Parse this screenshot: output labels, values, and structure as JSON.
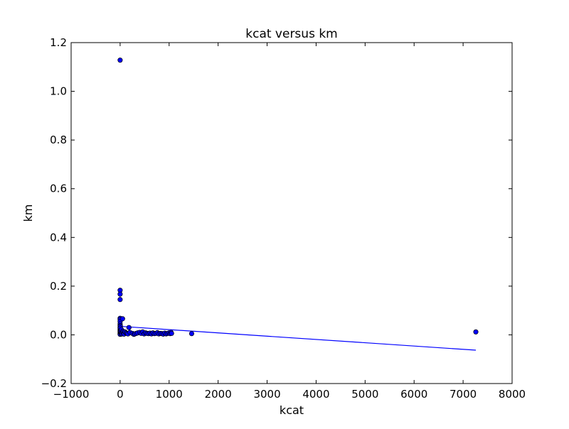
{
  "chart_data": {
    "type": "scatter",
    "title": "kcat versus km",
    "xlabel": "kcat",
    "ylabel": "km",
    "xlim": [
      -1000,
      8000
    ],
    "ylim": [
      -0.2,
      1.2
    ],
    "xticks": [
      -1000,
      0,
      1000,
      2000,
      3000,
      4000,
      5000,
      6000,
      7000,
      8000
    ],
    "yticks": [
      -0.2,
      0.0,
      0.2,
      0.4,
      0.6,
      0.8,
      1.0,
      1.2
    ],
    "xtick_labels": [
      "−1000",
      "0",
      "1000",
      "2000",
      "3000",
      "4000",
      "5000",
      "6000",
      "7000",
      "8000"
    ],
    "ytick_labels": [
      "−0.2",
      "0.0",
      "0.2",
      "0.4",
      "0.6",
      "0.8",
      "1.0",
      "1.2"
    ],
    "grid": false,
    "colors": {
      "points": "#0000ff",
      "fit_line": "#0000ff",
      "point_edge": "#000000"
    },
    "series": [
      {
        "type": "scatter",
        "points": [
          [
            0,
            1.128
          ],
          [
            0,
            0.183
          ],
          [
            0,
            0.167
          ],
          [
            0,
            0.145
          ],
          [
            0,
            0.068
          ],
          [
            0,
            0.063
          ],
          [
            0,
            0.055
          ],
          [
            0,
            0.045
          ],
          [
            0,
            0.038
          ],
          [
            0,
            0.03
          ],
          [
            0,
            0.025
          ],
          [
            0,
            0.02
          ],
          [
            0,
            0.015
          ],
          [
            0,
            0.01
          ],
          [
            0,
            0.005
          ],
          [
            0,
            0.002
          ],
          [
            5,
            0.035
          ],
          [
            5,
            0.028
          ],
          [
            8,
            0.018
          ],
          [
            10,
            0.012
          ],
          [
            15,
            0.006
          ],
          [
            20,
            0.003
          ],
          [
            25,
            0.022
          ],
          [
            30,
            0.008
          ],
          [
            40,
            0.004
          ],
          [
            50,
            0.066
          ],
          [
            55,
            0.015
          ],
          [
            60,
            0.01
          ],
          [
            70,
            0.005
          ],
          [
            80,
            0.003
          ],
          [
            100,
            0.012
          ],
          [
            120,
            0.008
          ],
          [
            140,
            0.006
          ],
          [
            160,
            0.004
          ],
          [
            180,
            0.03
          ],
          [
            200,
            0.01
          ],
          [
            250,
            0.006
          ],
          [
            280,
            0.002
          ],
          [
            300,
            0.004
          ],
          [
            330,
            0.006
          ],
          [
            360,
            0.008
          ],
          [
            400,
            0.01
          ],
          [
            430,
            0.006
          ],
          [
            460,
            0.012
          ],
          [
            490,
            0.004
          ],
          [
            520,
            0.008
          ],
          [
            550,
            0.006
          ],
          [
            580,
            0.005
          ],
          [
            610,
            0.007
          ],
          [
            640,
            0.004
          ],
          [
            670,
            0.008
          ],
          [
            700,
            0.005
          ],
          [
            730,
            0.006
          ],
          [
            760,
            0.009
          ],
          [
            790,
            0.004
          ],
          [
            820,
            0.006
          ],
          [
            850,
            0.005
          ],
          [
            880,
            0.003
          ],
          [
            910,
            0.007
          ],
          [
            940,
            0.004
          ],
          [
            970,
            0.006
          ],
          [
            1000,
            0.008
          ],
          [
            1020,
            0.005
          ],
          [
            1040,
            0.01
          ],
          [
            1050,
            0.006
          ],
          [
            1460,
            0.005
          ],
          [
            7260,
            0.012
          ]
        ]
      },
      {
        "type": "line",
        "points": [
          [
            0,
            0.035
          ],
          [
            7260,
            -0.063
          ]
        ]
      }
    ]
  }
}
